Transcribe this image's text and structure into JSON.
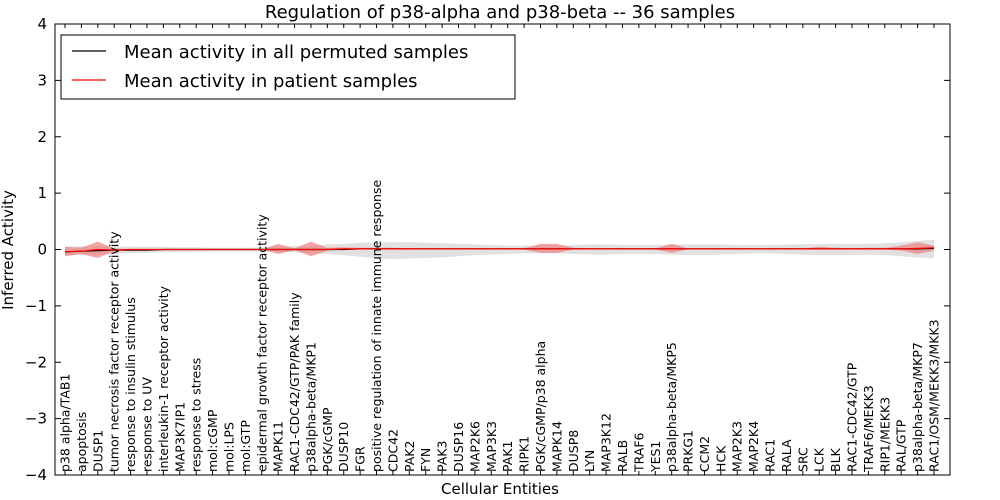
{
  "chart_data": {
    "type": "line",
    "title": "Regulation of p38-alpha and p38-beta -- 36 samples",
    "xlabel": "Cellular Entities",
    "ylabel": "Inferred Activity",
    "ylim": [
      -4,
      4
    ],
    "yticks": [
      -4,
      -3,
      -2,
      -1,
      0,
      1,
      2,
      3,
      4
    ],
    "ytick_labels": [
      "−4",
      "−3",
      "−2",
      "−1",
      "0",
      "1",
      "2",
      "3",
      "4"
    ],
    "grid": false,
    "legend_position": "top-left",
    "categories": [
      "p38 alpha/TAB1",
      "apoptosis",
      "DUSP1",
      "tumor necrosis factor receptor activity",
      "response to insulin stimulus",
      "response to UV",
      "interleukin-1 receptor activity",
      "MAP3K7IP1",
      "response to stress",
      "mol:cGMP",
      "mol:LPS",
      "mol:GTP",
      "epidermal growth factor receptor activity",
      "MAPK11",
      "RAC1-CDC42/GTP/PAK family",
      "p38alpha-beta/MKP1",
      "PGK/cGMP",
      "DUSP10",
      "FGR",
      "positive regulation of innate immune response",
      "CDC42",
      "PAK2",
      "FYN",
      "PAK3",
      "DUSP16",
      "MAP2K6",
      "MAP3K3",
      "PAK1",
      "RIPK1",
      "PGK/cGMP/p38 alpha",
      "MAPK14",
      "DUSP8",
      "LYN",
      "MAP3K12",
      "RALB",
      "TRAF6",
      "YES1",
      "p38alpha-beta/MKP5",
      "PRKG1",
      "CCM2",
      "HCK",
      "MAP2K3",
      "MAP2K4",
      "RAC1",
      "RALA",
      "SRC",
      "LCK",
      "BLK",
      "RAC1-CDC42/GTP",
      "TRAF6/MEKK3",
      "RIP1/MEKK3",
      "RAL/GTP",
      "p38alpha-beta/MKP7",
      "RAC1/OSM/MEKK3/MKK3"
    ],
    "series": [
      {
        "name": "Mean activity in all permuted samples",
        "color": "#000000",
        "band_color": "#c8c8c8",
        "values": [
          -0.04,
          -0.03,
          -0.02,
          -0.01,
          -0.01,
          -0.01,
          0,
          0,
          0,
          0,
          0,
          0,
          0,
          0,
          0,
          0,
          0,
          0,
          0.01,
          0.01,
          0.01,
          0.01,
          0.01,
          0.01,
          0.01,
          0.01,
          0.01,
          0.01,
          0.01,
          0.01,
          0.01,
          0.01,
          0.01,
          0.01,
          0.01,
          0.01,
          0.01,
          0.01,
          0.01,
          0.01,
          0.01,
          0.01,
          0.01,
          0.01,
          0.01,
          0.01,
          0.01,
          0.01,
          0.01,
          0.01,
          0.01,
          0.01,
          0.01,
          0.02
        ],
        "band_lower": [
          -0.1,
          -0.09,
          -0.09,
          -0.08,
          -0.07,
          -0.06,
          -0.05,
          -0.04,
          -0.04,
          -0.03,
          -0.03,
          -0.03,
          -0.03,
          -0.04,
          -0.05,
          -0.07,
          -0.08,
          -0.1,
          -0.13,
          -0.16,
          -0.17,
          -0.16,
          -0.15,
          -0.14,
          -0.12,
          -0.1,
          -0.09,
          -0.08,
          -0.07,
          -0.07,
          -0.07,
          -0.08,
          -0.09,
          -0.09,
          -0.08,
          -0.08,
          -0.08,
          -0.09,
          -0.1,
          -0.1,
          -0.09,
          -0.08,
          -0.07,
          -0.07,
          -0.08,
          -0.09,
          -0.1,
          -0.1,
          -0.1,
          -0.09,
          -0.1,
          -0.12,
          -0.14,
          -0.16
        ],
        "band_upper": [
          0.05,
          0.06,
          0.06,
          0.06,
          0.05,
          0.05,
          0.05,
          0.04,
          0.04,
          0.03,
          0.03,
          0.03,
          0.04,
          0.05,
          0.06,
          0.07,
          0.09,
          0.1,
          0.12,
          0.13,
          0.13,
          0.13,
          0.12,
          0.11,
          0.1,
          0.09,
          0.08,
          0.07,
          0.07,
          0.07,
          0.07,
          0.08,
          0.09,
          0.09,
          0.08,
          0.08,
          0.08,
          0.09,
          0.09,
          0.09,
          0.09,
          0.08,
          0.08,
          0.08,
          0.09,
          0.09,
          0.1,
          0.1,
          0.1,
          0.1,
          0.11,
          0.13,
          0.15,
          0.17
        ]
      },
      {
        "name": "Mean activity in patient samples",
        "color": "#ff0000",
        "band_color": "#f08080",
        "values": [
          -0.04,
          -0.03,
          0,
          -0.01,
          0,
          0,
          0,
          0,
          0,
          0,
          0,
          0,
          0,
          0,
          0,
          0,
          0,
          0.01,
          0.01,
          0.01,
          0.01,
          0.01,
          0.01,
          0.01,
          0.01,
          0.01,
          0.01,
          0.01,
          0.01,
          0.01,
          0.01,
          0.01,
          0.01,
          0.01,
          0.01,
          0.01,
          0.01,
          0.01,
          0.01,
          0.01,
          0.01,
          0.01,
          0.01,
          0.01,
          0.01,
          0.01,
          0.01,
          0.01,
          0.01,
          0.01,
          0.01,
          0.01,
          0.02,
          0.03
        ],
        "band_lower": [
          -0.12,
          -0.08,
          -0.15,
          -0.03,
          -0.01,
          -0.01,
          0,
          0,
          0,
          0,
          0,
          0,
          0,
          -0.08,
          -0.01,
          -0.12,
          -0.02,
          0,
          0,
          0.01,
          0,
          0,
          0,
          0,
          0,
          0,
          0,
          0,
          0,
          -0.06,
          -0.06,
          0,
          0,
          0,
          0,
          0,
          0,
          -0.06,
          0,
          0,
          0,
          0,
          0,
          0,
          0,
          0,
          0,
          0,
          0,
          0,
          0,
          -0.02,
          -0.08,
          -0.02
        ],
        "band_upper": [
          0.05,
          0.03,
          0.14,
          0.02,
          0.01,
          0.01,
          0,
          0,
          0,
          0,
          0,
          0,
          0,
          0.1,
          0.02,
          0.14,
          0.03,
          0.04,
          0.03,
          0.03,
          0.03,
          0.02,
          0.02,
          0.02,
          0.02,
          0.02,
          0.02,
          0.02,
          0.02,
          0.1,
          0.1,
          0.03,
          0.02,
          0.02,
          0.02,
          0.02,
          0.02,
          0.1,
          0.02,
          0.02,
          0.02,
          0.02,
          0.02,
          0.02,
          0.02,
          0.02,
          0.05,
          0.03,
          0.02,
          0.03,
          0.03,
          0.07,
          0.13,
          0.07
        ]
      }
    ]
  }
}
